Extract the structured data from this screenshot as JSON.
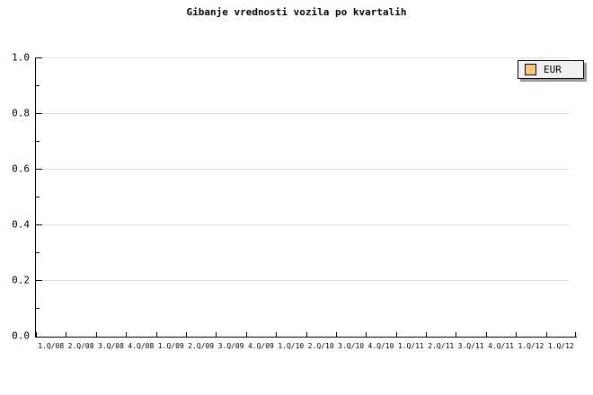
{
  "chart_data": {
    "type": "line",
    "title": "Gibanje vrednosti vozila po kvartalih",
    "xlabel": "",
    "ylabel": "",
    "categories": [
      "1.Q/08",
      "2.Q/08",
      "3.Q/08",
      "4.Q/08",
      "1.Q/09",
      "2.Q/09",
      "3.Q/09",
      "4.Q/09",
      "1.Q/10",
      "2.Q/10",
      "3.Q/10",
      "4.Q/10",
      "1.Q/11",
      "2.Q/11",
      "3.Q/11",
      "4.Q/11",
      "1.Q/12",
      "1.Q/12"
    ],
    "series": [
      {
        "name": "EUR",
        "color": "#fcc968",
        "values": []
      }
    ],
    "ylim": [
      0.0,
      1.0
    ],
    "y_ticks": {
      "major_values": [
        1.0,
        0.8,
        0.6,
        0.4,
        0.2,
        0.0
      ],
      "major_labels": [
        "1.0",
        "0.8",
        "0.6",
        "0.4",
        "0.2",
        "0.0"
      ],
      "minor_values": [
        0.9,
        0.7,
        0.5,
        0.3,
        0.1
      ]
    },
    "x_tick_count": 19,
    "grid": "horizontal-major",
    "legend_position": "top-right"
  },
  "colors": {
    "background": "#ffffff",
    "axis": "#000000",
    "grid": "#dedede",
    "text": "#000000",
    "legend_bg": "#f0f0f0",
    "legend_border": "#000000",
    "legend_shadow": "#9c9c9c",
    "eur_swatch": "#fcc968"
  }
}
